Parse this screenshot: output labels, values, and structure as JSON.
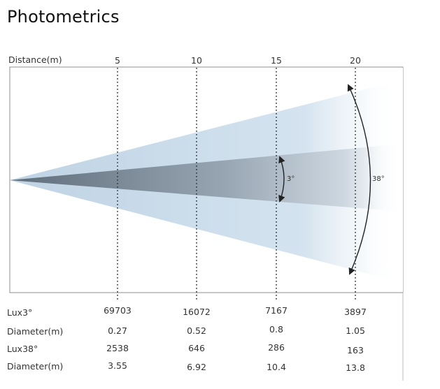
{
  "title": "Photometrics",
  "axis": {
    "label": "Distance(m)",
    "distances": [
      "5",
      "10",
      "15",
      "20"
    ]
  },
  "beams": {
    "narrow_angle": "3°",
    "wide_angle": "38°"
  },
  "table": {
    "rows": [
      {
        "label": "Lux3°",
        "values": [
          "69703",
          "16072",
          "7167",
          "3897"
        ]
      },
      {
        "label": "Diameter(m)",
        "values": [
          "0.27",
          "0.52",
          "0.8",
          "1.05"
        ]
      },
      {
        "label": "Lux38°",
        "values": [
          "2538",
          "646",
          "286",
          "163"
        ]
      },
      {
        "label": "Diameter(m)",
        "values": [
          "3.55",
          "6.92",
          "10.4",
          "13.8"
        ]
      }
    ]
  },
  "colors": {
    "wide_beam": "#c9dbe9",
    "narrow_beam": "#8a98a6",
    "frame": "#8f8f8f",
    "text": "#333333"
  }
}
